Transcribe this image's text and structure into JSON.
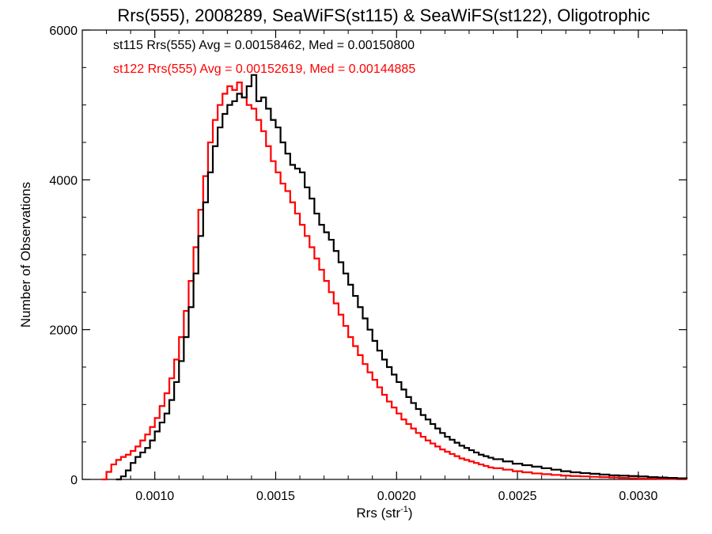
{
  "chart_data": {
    "type": "line",
    "title": "Rrs(555), 2008289, SeaWiFS(st115) & SeaWiFS(st122), Oligotrophic",
    "xlabel": "Rrs (str",
    "xlabel_sup": "-1",
    "xlabel_close": ")",
    "ylabel": "Number of Observations",
    "xlim": [
      0.0007,
      0.0032
    ],
    "ylim": [
      0,
      6000
    ],
    "xticks": [
      0.001,
      0.0015,
      0.002,
      0.0025,
      0.003
    ],
    "xtick_labels": [
      "0.0010",
      "0.0015",
      "0.0020",
      "0.0025",
      "0.0030"
    ],
    "yticks": [
      0,
      2000,
      4000,
      6000
    ],
    "ytick_labels": [
      "0",
      "2000",
      "4000",
      "6000"
    ],
    "grid": false,
    "annotations": [
      "st115 Rrs(555) Avg = 0.00158462, Med = 0.00150800",
      "st122 Rrs(555) Avg = 0.00152619, Med = 0.00144885"
    ],
    "series": [
      {
        "name": "st115",
        "color": "#000000",
        "x": [
          0.00084,
          0.00086,
          0.00088,
          0.0009,
          0.00092,
          0.00094,
          0.00096,
          0.00098,
          0.001,
          0.00102,
          0.00104,
          0.00106,
          0.00108,
          0.0011,
          0.00112,
          0.00114,
          0.00116,
          0.00118,
          0.0012,
          0.00122,
          0.00124,
          0.00126,
          0.00128,
          0.0013,
          0.00132,
          0.00134,
          0.00136,
          0.00138,
          0.0014,
          0.00142,
          0.00144,
          0.00146,
          0.00148,
          0.0015,
          0.00152,
          0.00154,
          0.00156,
          0.00158,
          0.0016,
          0.00162,
          0.00164,
          0.00166,
          0.00168,
          0.0017,
          0.00172,
          0.00174,
          0.00176,
          0.00178,
          0.0018,
          0.00182,
          0.00184,
          0.00186,
          0.00188,
          0.0019,
          0.00192,
          0.00194,
          0.00196,
          0.00198,
          0.002,
          0.00202,
          0.00204,
          0.00206,
          0.00208,
          0.0021,
          0.00212,
          0.00214,
          0.00216,
          0.00218,
          0.0022,
          0.00222,
          0.00224,
          0.00226,
          0.00228,
          0.0023,
          0.00232,
          0.00234,
          0.00236,
          0.00238,
          0.0024,
          0.00244,
          0.00248,
          0.00252,
          0.00256,
          0.0026,
          0.00264,
          0.00268,
          0.00272,
          0.00276,
          0.0028,
          0.00284,
          0.00288,
          0.00292,
          0.00296,
          0.003,
          0.00304,
          0.00308,
          0.00312,
          0.00316,
          0.0032
        ],
        "y": [
          0,
          40,
          120,
          220,
          300,
          360,
          420,
          520,
          640,
          760,
          880,
          1060,
          1300,
          1580,
          1900,
          2300,
          2750,
          3250,
          3700,
          4100,
          4450,
          4700,
          4880,
          5000,
          5050,
          5150,
          5100,
          5250,
          5400,
          5050,
          5100,
          4950,
          4800,
          4700,
          4500,
          4350,
          4200,
          4150,
          4100,
          3900,
          3750,
          3550,
          3400,
          3300,
          3200,
          3050,
          2900,
          2750,
          2600,
          2450,
          2300,
          2150,
          2000,
          1850,
          1720,
          1600,
          1500,
          1400,
          1300,
          1200,
          1100,
          1020,
          940,
          860,
          800,
          740,
          680,
          620,
          570,
          530,
          490,
          450,
          420,
          390,
          360,
          330,
          310,
          290,
          270,
          240,
          210,
          190,
          170,
          150,
          130,
          110,
          95,
          85,
          75,
          65,
          55,
          50,
          45,
          40,
          30,
          25,
          20,
          15,
          10
        ]
      },
      {
        "name": "st122",
        "color": "#ff0000",
        "x": [
          0.00078,
          0.0008,
          0.00082,
          0.00084,
          0.00086,
          0.00088,
          0.0009,
          0.00092,
          0.00094,
          0.00096,
          0.00098,
          0.001,
          0.00102,
          0.00104,
          0.00106,
          0.00108,
          0.0011,
          0.00112,
          0.00114,
          0.00116,
          0.00118,
          0.0012,
          0.00122,
          0.00124,
          0.00126,
          0.00128,
          0.0013,
          0.00132,
          0.00134,
          0.00136,
          0.00138,
          0.0014,
          0.00142,
          0.00144,
          0.00146,
          0.00148,
          0.0015,
          0.00152,
          0.00154,
          0.00156,
          0.00158,
          0.0016,
          0.00162,
          0.00164,
          0.00166,
          0.00168,
          0.0017,
          0.00172,
          0.00174,
          0.00176,
          0.00178,
          0.0018,
          0.00182,
          0.00184,
          0.00186,
          0.00188,
          0.0019,
          0.00192,
          0.00194,
          0.00196,
          0.00198,
          0.002,
          0.00202,
          0.00204,
          0.00206,
          0.00208,
          0.0021,
          0.00212,
          0.00214,
          0.00216,
          0.00218,
          0.0022,
          0.00222,
          0.00224,
          0.00226,
          0.00228,
          0.0023,
          0.00232,
          0.00234,
          0.00236,
          0.00238,
          0.0024,
          0.00244,
          0.00248,
          0.00252,
          0.00256,
          0.0026,
          0.00264,
          0.00268,
          0.00272,
          0.00276,
          0.0028,
          0.00284,
          0.00288,
          0.00292,
          0.00296,
          0.003,
          0.00304,
          0.00308,
          0.00312,
          0.00316,
          0.0032
        ],
        "y": [
          0,
          100,
          200,
          260,
          300,
          330,
          380,
          440,
          520,
          600,
          700,
          820,
          980,
          1150,
          1350,
          1600,
          1900,
          2250,
          2650,
          3100,
          3600,
          4050,
          4500,
          4800,
          5000,
          5150,
          5250,
          5200,
          5300,
          5100,
          5000,
          4950,
          4800,
          4650,
          4450,
          4250,
          4100,
          3950,
          3850,
          3700,
          3550,
          3400,
          3250,
          3100,
          2950,
          2800,
          2650,
          2500,
          2350,
          2200,
          2050,
          1900,
          1780,
          1660,
          1540,
          1430,
          1330,
          1230,
          1130,
          1040,
          960,
          880,
          800,
          740,
          680,
          620,
          570,
          520,
          480,
          440,
          400,
          370,
          340,
          310,
          280,
          260,
          240,
          220,
          200,
          180,
          160,
          150,
          130,
          110,
          95,
          80,
          70,
          60,
          50,
          45,
          40,
          35,
          30,
          25,
          20,
          15,
          12,
          10,
          8,
          6,
          4,
          2
        ]
      }
    ]
  }
}
